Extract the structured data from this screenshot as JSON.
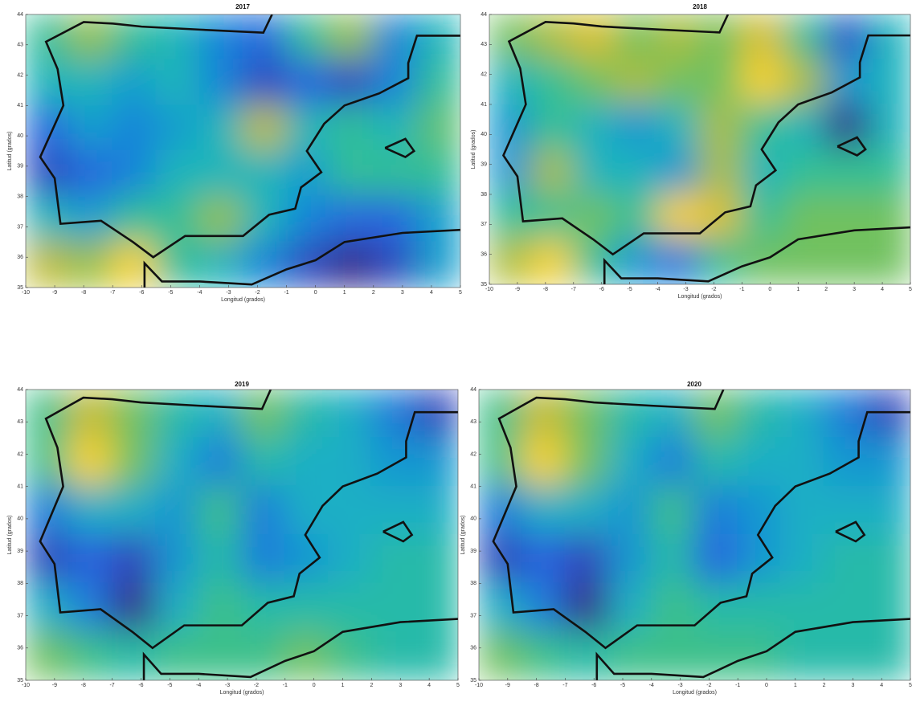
{
  "chart_data": [
    {
      "type": "contour",
      "title": "2017",
      "xlabel": "Longitud (grados)",
      "ylabel": "Latitud (grados)",
      "xlim": [
        -10,
        5
      ],
      "ylim": [
        35,
        44
      ],
      "xticks": [
        -10,
        -9,
        -8,
        -7,
        -6,
        -5,
        -4,
        -3,
        -2,
        -1,
        0,
        1,
        2,
        3,
        4,
        5
      ],
      "yticks": [
        35,
        36,
        37,
        38,
        39,
        40,
        41,
        42,
        43,
        44
      ],
      "colormap": [
        "#352a87",
        "#2c5be0",
        "#1488d8",
        "#1ab3c3",
        "#36c08f",
        "#8fc146",
        "#d1ba2a",
        "#f9d32a"
      ],
      "z": [
        [
          0.42,
          0.46,
          0.42,
          0.4,
          0.36,
          0.34,
          0.42,
          0.46,
          0.36,
          0.4
        ],
        [
          0.4,
          0.4,
          0.38,
          0.4,
          0.36,
          0.32,
          0.34,
          0.32,
          0.36,
          0.42
        ],
        [
          0.34,
          0.38,
          0.36,
          0.38,
          0.4,
          0.48,
          0.4,
          0.42,
          0.4,
          0.44
        ],
        [
          0.32,
          0.34,
          0.36,
          0.4,
          0.4,
          0.4,
          0.38,
          0.42,
          0.42,
          0.42
        ],
        [
          0.4,
          0.38,
          0.42,
          0.42,
          0.46,
          0.4,
          0.36,
          0.34,
          0.34,
          0.38
        ],
        [
          0.48,
          0.46,
          0.52,
          0.42,
          0.4,
          0.36,
          0.32,
          0.3,
          0.32,
          0.38
        ]
      ]
    },
    {
      "type": "contour",
      "title": "2018",
      "xlabel": "Longitud (grados)",
      "ylabel": "Latitud (grados)",
      "xlim": [
        -10,
        5
      ],
      "ylim": [
        35,
        44
      ],
      "xticks": [
        -10,
        -9,
        -8,
        -7,
        -6,
        -5,
        -4,
        -3,
        -2,
        -1,
        0,
        1,
        2,
        3,
        4,
        5
      ],
      "yticks": [
        35,
        36,
        37,
        38,
        39,
        40,
        41,
        42,
        43,
        44
      ],
      "colormap": [
        "#352a87",
        "#2c5be0",
        "#1488d8",
        "#1ab3c3",
        "#36c08f",
        "#8fc146",
        "#d1ba2a",
        "#f9d32a"
      ],
      "z": [
        [
          0.42,
          0.44,
          0.46,
          0.42,
          0.44,
          0.42,
          0.46,
          0.4,
          0.32,
          0.38
        ],
        [
          0.38,
          0.4,
          0.42,
          0.44,
          0.42,
          0.42,
          0.48,
          0.44,
          0.36,
          0.38
        ],
        [
          0.36,
          0.4,
          0.38,
          0.36,
          0.38,
          0.44,
          0.4,
          0.38,
          0.3,
          0.38
        ],
        [
          0.36,
          0.44,
          0.38,
          0.38,
          0.36,
          0.44,
          0.38,
          0.4,
          0.4,
          0.4
        ],
        [
          0.4,
          0.4,
          0.42,
          0.4,
          0.48,
          0.46,
          0.4,
          0.42,
          0.42,
          0.42
        ],
        [
          0.44,
          0.48,
          0.4,
          0.36,
          0.34,
          0.4,
          0.42,
          0.42,
          0.42,
          0.42
        ]
      ]
    },
    {
      "type": "contour",
      "title": "2019",
      "xlabel": "Longitud (grados)",
      "ylabel": "Latitud (grados)",
      "xlim": [
        -10,
        5
      ],
      "ylim": [
        35,
        44
      ],
      "xticks": [
        -10,
        -9,
        -8,
        -7,
        -6,
        -5,
        -4,
        -3,
        -2,
        -1,
        0,
        1,
        2,
        3,
        4,
        5
      ],
      "yticks": [
        35,
        36,
        37,
        38,
        39,
        40,
        41,
        42,
        43,
        44
      ],
      "colormap": [
        "#352a87",
        "#2c5be0",
        "#1488d8",
        "#1ab3c3",
        "#36c08f",
        "#8fc146",
        "#d1ba2a",
        "#f9d32a"
      ],
      "z": [
        [
          0.44,
          0.5,
          0.46,
          0.42,
          0.4,
          0.46,
          0.42,
          0.4,
          0.36,
          0.32
        ],
        [
          0.44,
          0.54,
          0.46,
          0.4,
          0.36,
          0.42,
          0.4,
          0.4,
          0.38,
          0.38
        ],
        [
          0.36,
          0.4,
          0.4,
          0.38,
          0.44,
          0.36,
          0.4,
          0.4,
          0.4,
          0.4
        ],
        [
          0.32,
          0.34,
          0.32,
          0.38,
          0.42,
          0.36,
          0.38,
          0.4,
          0.42,
          0.42
        ],
        [
          0.4,
          0.36,
          0.3,
          0.4,
          0.44,
          0.42,
          0.42,
          0.42,
          0.42,
          0.42
        ],
        [
          0.46,
          0.44,
          0.42,
          0.44,
          0.44,
          0.44,
          0.46,
          0.44,
          0.42,
          0.42
        ]
      ]
    },
    {
      "type": "contour",
      "title": "2020",
      "xlabel": "Longitud (grados)",
      "ylabel": "Latitud (grados)",
      "xlim": [
        -10,
        5
      ],
      "ylim": [
        35,
        44
      ],
      "xticks": [
        -10,
        -9,
        -8,
        -7,
        -6,
        -5,
        -4,
        -3,
        -2,
        -1,
        0,
        1,
        2,
        3,
        4,
        5
      ],
      "yticks": [
        35,
        36,
        37,
        38,
        39,
        40,
        41,
        42,
        43,
        44
      ],
      "colormap": [
        "#352a87",
        "#2c5be0",
        "#1488d8",
        "#1ab3c3",
        "#36c08f",
        "#8fc146",
        "#d1ba2a",
        "#f9d32a"
      ],
      "z": [
        [
          0.44,
          0.5,
          0.46,
          0.42,
          0.4,
          0.46,
          0.42,
          0.4,
          0.36,
          0.32
        ],
        [
          0.44,
          0.54,
          0.46,
          0.4,
          0.36,
          0.42,
          0.4,
          0.4,
          0.38,
          0.38
        ],
        [
          0.36,
          0.4,
          0.4,
          0.38,
          0.44,
          0.36,
          0.38,
          0.4,
          0.4,
          0.4
        ],
        [
          0.32,
          0.34,
          0.32,
          0.38,
          0.42,
          0.34,
          0.38,
          0.4,
          0.42,
          0.42
        ],
        [
          0.4,
          0.36,
          0.3,
          0.4,
          0.44,
          0.42,
          0.42,
          0.42,
          0.42,
          0.42
        ],
        [
          0.46,
          0.44,
          0.42,
          0.44,
          0.44,
          0.44,
          0.44,
          0.42,
          0.42,
          0.42
        ]
      ]
    }
  ]
}
